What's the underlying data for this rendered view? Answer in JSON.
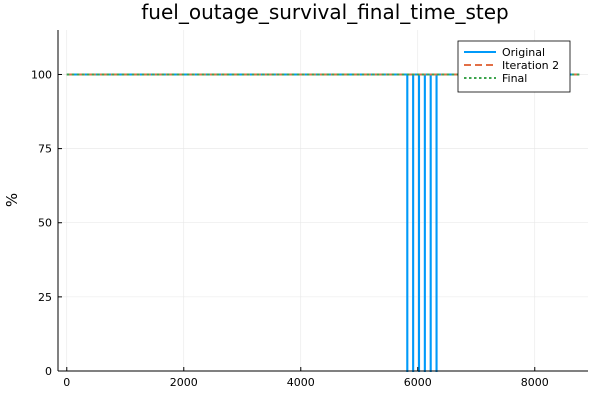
{
  "chart_data": {
    "type": "line",
    "title": "fuel_outage_survival_final_time_step",
    "xlabel": "",
    "ylabel": "%",
    "xlim": [
      -150,
      8910
    ],
    "ylim": [
      0,
      115
    ],
    "xticks": [
      0,
      2000,
      4000,
      6000,
      8000
    ],
    "yticks": [
      0,
      25,
      50,
      75,
      100
    ],
    "grid": true,
    "legend_position": "top-right",
    "series": [
      {
        "name": "Original",
        "color": "#009af9",
        "style": "solid",
        "x": [
          0,
          5820,
          5820,
          5822,
          5822,
          5920,
          5920,
          5922,
          5922,
          6020,
          6020,
          6022,
          6022,
          6120,
          6120,
          6122,
          6122,
          6220,
          6220,
          6222,
          6222,
          6320,
          6320,
          6322,
          6322,
          8760
        ],
        "y": [
          100,
          100,
          0,
          0,
          100,
          100,
          0,
          0,
          100,
          100,
          0,
          0,
          100,
          100,
          0,
          0,
          100,
          100,
          0,
          0,
          100,
          100,
          0,
          0,
          100,
          100
        ]
      },
      {
        "name": "Iteration 2",
        "color": "#e26f46",
        "style": "dashed",
        "x": [
          0,
          8760
        ],
        "y": [
          100,
          100
        ]
      },
      {
        "name": "Final",
        "color": "#3da44d",
        "style": "dotted",
        "x": [
          0,
          8760
        ],
        "y": [
          100,
          100
        ]
      }
    ]
  }
}
